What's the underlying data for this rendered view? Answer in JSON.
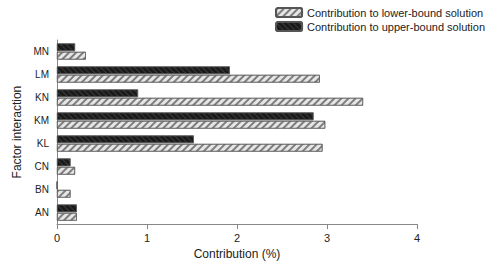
{
  "chart_data": {
    "type": "bar",
    "orientation": "horizontal",
    "xlabel": "Contribution (%)",
    "ylabel": "Factor interaction",
    "categories": [
      "AN",
      "BN",
      "CN",
      "KL",
      "KM",
      "KN",
      "LM",
      "MN"
    ],
    "series": [
      {
        "name": "Contribution to lower-bound solution",
        "color": "#e6e6e6",
        "values": [
          0.22,
          0.15,
          0.2,
          2.95,
          2.98,
          3.4,
          2.92,
          0.32
        ]
      },
      {
        "name": "Contribution to upper-bound solution",
        "color": "#1a1a1a",
        "values": [
          0.22,
          0,
          0.15,
          1.52,
          2.85,
          0.9,
          1.92,
          0.2
        ]
      }
    ],
    "xlim": [
      0,
      4
    ],
    "xticks": [
      0,
      1,
      2,
      3,
      4
    ],
    "grid": false,
    "legend": "upper right"
  }
}
